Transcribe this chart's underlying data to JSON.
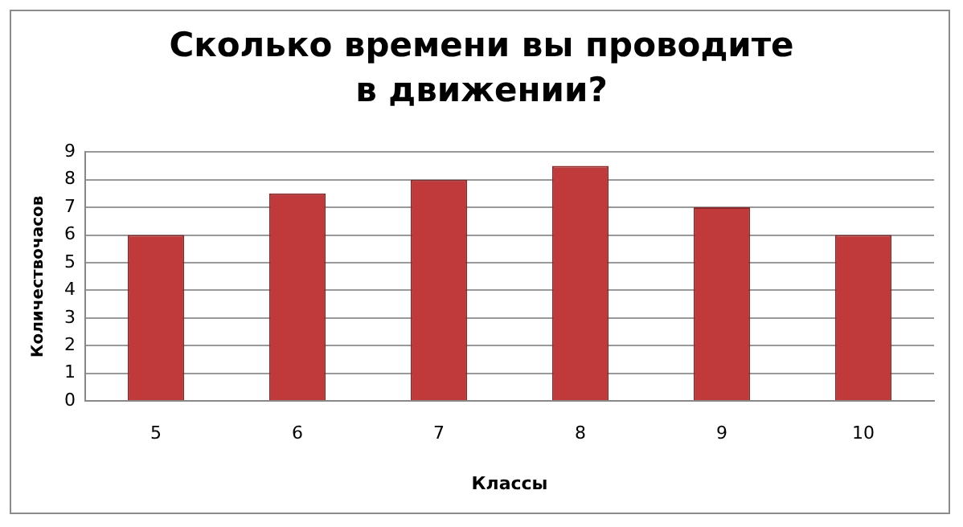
{
  "chart_data": {
    "type": "bar",
    "title": "Сколько времени вы проводите в движении?",
    "xlabel": "Классы",
    "ylabel": "Количествочасов",
    "categories": [
      "5",
      "6",
      "7",
      "8",
      "9",
      "10"
    ],
    "values": [
      6,
      7.5,
      8,
      8.5,
      7,
      6
    ],
    "color": "#c0393b",
    "ylim": [
      0,
      9
    ],
    "yticks": [
      0,
      1,
      2,
      3,
      4,
      5,
      6,
      7,
      8,
      9
    ],
    "grid": "y",
    "legend": false
  }
}
